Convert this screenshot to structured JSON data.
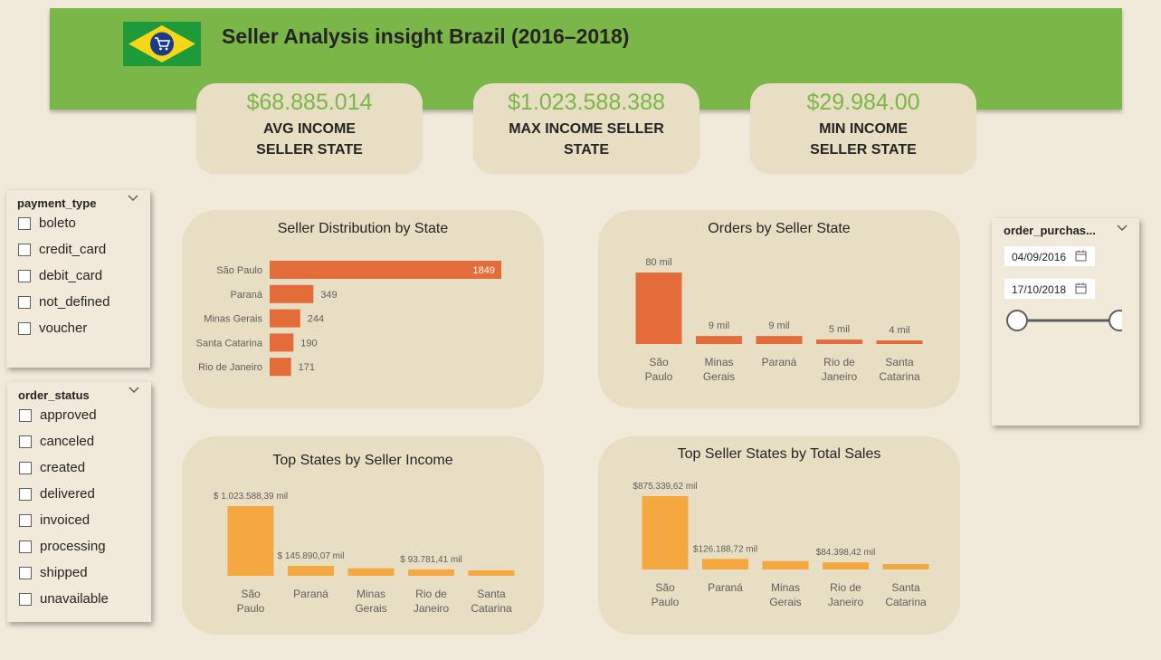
{
  "header": {
    "title": "Seller Analysis insight Brazil (2016–2018)",
    "flag_icon": "brazil-flag-cart-icon",
    "bg_color": "#7ab648"
  },
  "kpis": [
    {
      "value": "$68.885.014",
      "line1": "AVG INCOME",
      "line2": "SELLER STATE"
    },
    {
      "value": "$1.023.588.388",
      "line1": "MAX INCOME SELLER",
      "line2": "STATE"
    },
    {
      "value": "$29.984.00",
      "line1": "MIN INCOME",
      "line2": "SELLER STATE"
    }
  ],
  "payment_slicer": {
    "title": "payment_type",
    "options": [
      "boleto",
      "credit_card",
      "debit_card",
      "not_defined",
      "voucher"
    ]
  },
  "status_slicer": {
    "title": "order_status",
    "options": [
      "approved",
      "canceled",
      "created",
      "delivered",
      "invoiced",
      "processing",
      "shipped",
      "unavailable"
    ]
  },
  "date_slicer": {
    "title": "order_purchas...",
    "start": "04/09/2016",
    "end": "17/10/2018"
  },
  "colors": {
    "bar_red": "#e36c3a",
    "bar_orange": "#f4a83f",
    "card_bg": "#e8dec3",
    "kpi_value": "#7ab648"
  },
  "chart_data": [
    {
      "type": "bar",
      "orientation": "horizontal",
      "title": "Seller Distribution by State",
      "categories": [
        "São Paulo",
        "Paraná",
        "Minas Gerais",
        "Santa Catarina",
        "Rio de Janeiro"
      ],
      "values": [
        1849,
        349,
        244,
        190,
        171
      ],
      "labels": [
        "1849",
        "349",
        "244",
        "190",
        "171"
      ]
    },
    {
      "type": "bar",
      "title": "Orders by Seller State",
      "categories": [
        "São Paulo",
        "Minas Gerais",
        "Paraná",
        "Rio de Janeiro",
        "Santa Catarina"
      ],
      "values": [
        80000,
        9000,
        9000,
        5000,
        4000
      ],
      "labels": [
        "80 mil",
        "9 mil",
        "9 mil",
        "5 mil",
        "4 mil"
      ]
    },
    {
      "type": "bar",
      "title": "Top States by Seller Income",
      "categories": [
        "São Paulo",
        "Paraná",
        "Minas Gerais",
        "Rio de Janeiro",
        "Santa Catarina"
      ],
      "values": [
        1023588.39,
        145890.07,
        110000,
        93781.41,
        70000
      ],
      "labels": [
        "$ 1.023.588,39 mil",
        "$ 145.890,07 mil",
        "",
        "$ 93.781,41 mil",
        ""
      ]
    },
    {
      "type": "bar",
      "title": "Top Seller States by Total Sales",
      "categories": [
        "São Paulo",
        "Paraná",
        "Minas Gerais",
        "Rio de Janeiro",
        "Santa Catarina"
      ],
      "values": [
        875339.62,
        126188.72,
        100000,
        84398.42,
        60000
      ],
      "labels": [
        "$875.339,62 mil",
        "$126.188,72 mil",
        "",
        "$84.398,42 mil",
        ""
      ]
    }
  ]
}
